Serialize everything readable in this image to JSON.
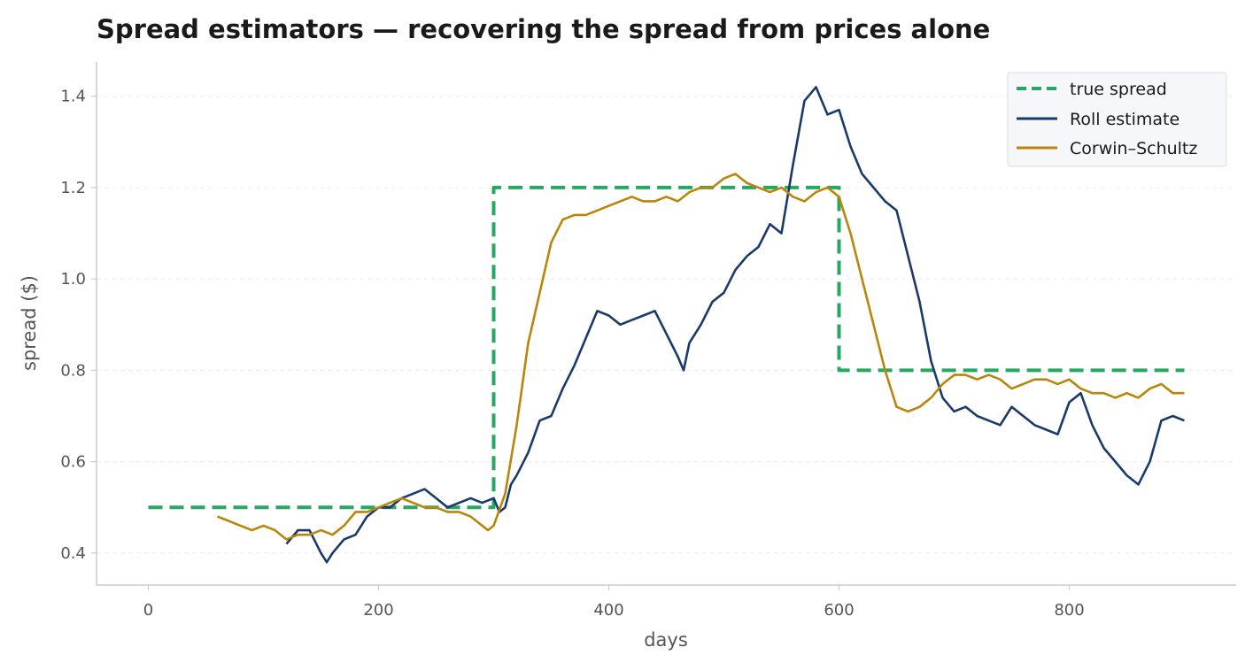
{
  "chart_data": {
    "type": "line",
    "title": "Spread estimators — recovering the spread from prices alone",
    "xlabel": "days",
    "ylabel": "spread ($)",
    "xlim": [
      -45,
      945
    ],
    "ylim": [
      0.33,
      1.475
    ],
    "xticks": [
      0,
      200,
      400,
      600,
      800
    ],
    "xtick_labels": [
      "0",
      "200",
      "400",
      "600",
      "800"
    ],
    "yticks": [
      0.4,
      0.6,
      0.8,
      1.0,
      1.2,
      1.4
    ],
    "ytick_labels": [
      "0.4",
      "0.6",
      "0.8",
      "1.0",
      "1.2",
      "1.4"
    ],
    "grid": "horizontal dashed",
    "legend_position": "top-right",
    "series": [
      {
        "name": "true spread",
        "color": "#27a862",
        "style": "dashed",
        "x": [
          0,
          300,
          300,
          600,
          600,
          900
        ],
        "y": [
          0.5,
          0.5,
          1.2,
          1.2,
          0.8,
          0.8
        ]
      },
      {
        "name": "Roll estimate",
        "color": "#1a3a6b",
        "style": "solid",
        "x": [
          120,
          130,
          140,
          150,
          155,
          160,
          170,
          180,
          190,
          200,
          210,
          220,
          230,
          240,
          250,
          260,
          270,
          280,
          290,
          300,
          305,
          310,
          315,
          320,
          330,
          340,
          350,
          360,
          370,
          380,
          385,
          390,
          400,
          410,
          420,
          430,
          440,
          450,
          460,
          465,
          470,
          480,
          490,
          500,
          510,
          520,
          530,
          540,
          550,
          560,
          570,
          580,
          590,
          600,
          610,
          620,
          630,
          640,
          650,
          660,
          670,
          680,
          690,
          700,
          710,
          720,
          730,
          740,
          750,
          760,
          770,
          780,
          790,
          800,
          810,
          820,
          830,
          840,
          850,
          860,
          870,
          880,
          890,
          900
        ],
        "y": [
          0.42,
          0.45,
          0.45,
          0.4,
          0.38,
          0.4,
          0.43,
          0.44,
          0.48,
          0.5,
          0.5,
          0.52,
          0.53,
          0.54,
          0.52,
          0.5,
          0.51,
          0.52,
          0.51,
          0.52,
          0.49,
          0.5,
          0.55,
          0.57,
          0.62,
          0.69,
          0.7,
          0.76,
          0.81,
          0.87,
          0.9,
          0.93,
          0.92,
          0.9,
          0.91,
          0.92,
          0.93,
          0.88,
          0.83,
          0.8,
          0.86,
          0.9,
          0.95,
          0.97,
          1.02,
          1.05,
          1.07,
          1.12,
          1.1,
          1.25,
          1.39,
          1.42,
          1.36,
          1.37,
          1.29,
          1.23,
          1.2,
          1.17,
          1.15,
          1.05,
          0.95,
          0.82,
          0.74,
          0.71,
          0.72,
          0.7,
          0.69,
          0.68,
          0.72,
          0.7,
          0.68,
          0.67,
          0.66,
          0.73,
          0.75,
          0.68,
          0.63,
          0.6,
          0.57,
          0.55,
          0.6,
          0.69,
          0.7,
          0.69
        ]
      },
      {
        "name": "Corwin–Schultz",
        "color": "#b8860b",
        "style": "solid",
        "x": [
          60,
          70,
          80,
          90,
          100,
          110,
          120,
          130,
          140,
          150,
          160,
          170,
          180,
          190,
          200,
          210,
          220,
          230,
          240,
          250,
          260,
          270,
          280,
          290,
          295,
          300,
          310,
          320,
          330,
          340,
          350,
          360,
          370,
          380,
          390,
          400,
          410,
          420,
          430,
          440,
          450,
          460,
          470,
          480,
          490,
          500,
          510,
          520,
          530,
          540,
          550,
          560,
          570,
          580,
          590,
          600,
          610,
          620,
          630,
          640,
          650,
          660,
          670,
          680,
          690,
          700,
          710,
          720,
          730,
          740,
          750,
          760,
          770,
          780,
          790,
          800,
          810,
          820,
          830,
          840,
          850,
          860,
          870,
          880,
          890,
          900
        ],
        "y": [
          0.48,
          0.47,
          0.46,
          0.45,
          0.46,
          0.45,
          0.43,
          0.44,
          0.44,
          0.45,
          0.44,
          0.46,
          0.49,
          0.49,
          0.5,
          0.51,
          0.52,
          0.51,
          0.5,
          0.5,
          0.49,
          0.49,
          0.48,
          0.46,
          0.45,
          0.46,
          0.53,
          0.68,
          0.86,
          0.97,
          1.08,
          1.13,
          1.14,
          1.14,
          1.15,
          1.16,
          1.17,
          1.18,
          1.17,
          1.17,
          1.18,
          1.17,
          1.19,
          1.2,
          1.2,
          1.22,
          1.23,
          1.21,
          1.2,
          1.19,
          1.2,
          1.18,
          1.17,
          1.19,
          1.2,
          1.18,
          1.1,
          1.0,
          0.9,
          0.8,
          0.72,
          0.71,
          0.72,
          0.74,
          0.77,
          0.79,
          0.79,
          0.78,
          0.79,
          0.78,
          0.76,
          0.77,
          0.78,
          0.78,
          0.77,
          0.78,
          0.76,
          0.75,
          0.75,
          0.74,
          0.75,
          0.74,
          0.76,
          0.77,
          0.75,
          0.75
        ]
      }
    ]
  }
}
